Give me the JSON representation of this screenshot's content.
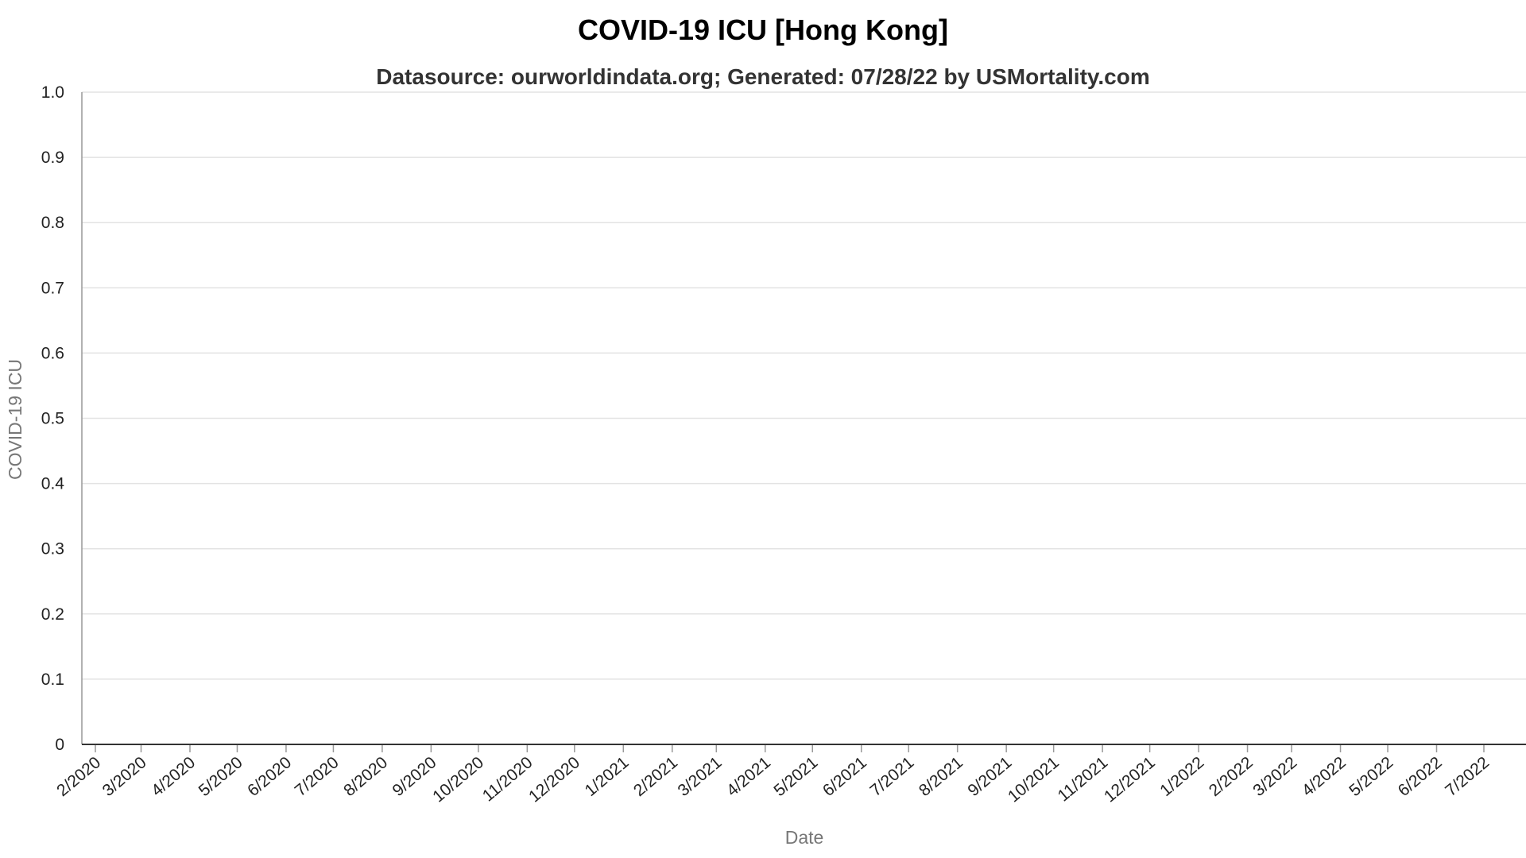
{
  "chart_data": {
    "type": "line",
    "title": "COVID-19 ICU [Hong Kong]",
    "subtitle": "Datasource: ourworldindata.org; Generated: 07/28/22 by USMortality.com",
    "xlabel": "Date",
    "ylabel": "COVID-19 ICU",
    "ylim": [
      0,
      1
    ],
    "grid": true,
    "y_ticks": [
      "0",
      "0.1",
      "0.2",
      "0.3",
      "0.4",
      "0.5",
      "0.6",
      "0.7",
      "0.8",
      "0.9",
      "1.0"
    ],
    "x_ticks": [
      "2/2020",
      "3/2020",
      "4/2020",
      "5/2020",
      "6/2020",
      "7/2020",
      "8/2020",
      "9/2020",
      "10/2020",
      "11/2020",
      "12/2020",
      "1/2021",
      "2/2021",
      "3/2021",
      "4/2021",
      "5/2021",
      "6/2021",
      "7/2021",
      "8/2021",
      "9/2021",
      "10/2021",
      "11/2021",
      "12/2021",
      "1/2022",
      "2/2022",
      "3/2022",
      "4/2022",
      "5/2022",
      "6/2022",
      "7/2022"
    ],
    "series": []
  }
}
